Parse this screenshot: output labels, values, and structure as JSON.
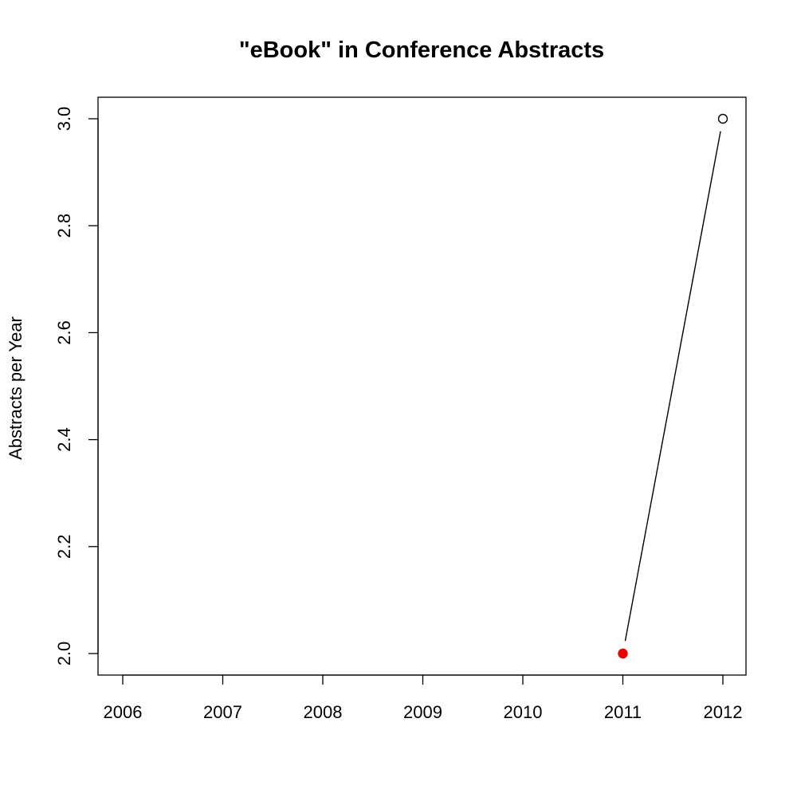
{
  "chart_data": {
    "type": "line",
    "title": "\"eBook\" in Conference Abstracts",
    "xlabel": "",
    "ylabel": "Abstracts per Year",
    "xlim": [
      2006,
      2012
    ],
    "ylim": [
      2.0,
      3.0
    ],
    "x_ticks": [
      "2006",
      "2007",
      "2008",
      "2009",
      "2010",
      "2011",
      "2012"
    ],
    "y_ticks": [
      "2.0",
      "2.2",
      "2.4",
      "2.6",
      "2.8",
      "3.0"
    ],
    "grid": false,
    "legend": "none",
    "series": [
      {
        "x": [
          2011,
          2012
        ],
        "y": [
          2,
          3
        ],
        "line_color": "#000000",
        "point_styles": [
          "filled",
          "open"
        ],
        "point_colors": [
          "#ee0000",
          "#000000"
        ]
      }
    ]
  }
}
